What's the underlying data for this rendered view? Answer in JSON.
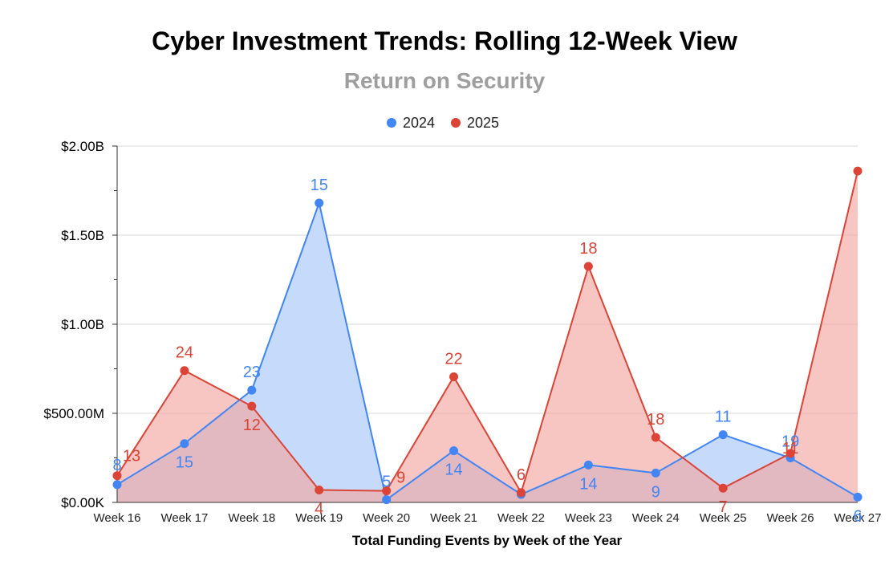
{
  "chart_data": {
    "type": "area",
    "title": "Cyber Investment Trends: Rolling 12-Week View",
    "subtitle": "Return on Security",
    "xlabel": "Total Funding Events by Week of the Year",
    "ylabel": "",
    "categories": [
      "Week 16",
      "Week 17",
      "Week 18",
      "Week 19",
      "Week 20",
      "Week 21",
      "Week 22",
      "Week 23",
      "Week 24",
      "Week 25",
      "Week 26",
      "Week 27"
    ],
    "ylim": [
      0,
      2000000000
    ],
    "yticks": [
      0,
      500000000,
      1000000000,
      1500000000,
      2000000000
    ],
    "ytick_labels": [
      "$0.00K",
      "$500.00M",
      "$1.00B",
      "$1.50B",
      "$2.00B"
    ],
    "grid": true,
    "legend": "top-center",
    "series": [
      {
        "name": "2024",
        "color": "#4285f4",
        "fill": "#c6dafc",
        "values": [
          100000000,
          330000000,
          630000000,
          1680000000,
          15000000,
          290000000,
          45000000,
          210000000,
          165000000,
          380000000,
          250000000,
          30000000
        ],
        "labels": [
          "8",
          "15",
          "23",
          "15",
          "5",
          "14",
          "",
          "14",
          "9",
          "11",
          "19",
          "6"
        ]
      },
      {
        "name": "2025",
        "color": "#db4437",
        "fill": "#f4a39c",
        "values": [
          150000000,
          740000000,
          540000000,
          70000000,
          65000000,
          705000000,
          55000000,
          1325000000,
          365000000,
          80000000,
          275000000,
          1860000000
        ],
        "labels": [
          "13",
          "24",
          "12",
          "4",
          "9",
          "22",
          "6",
          "18",
          "18",
          "7",
          "11",
          ""
        ]
      }
    ]
  }
}
